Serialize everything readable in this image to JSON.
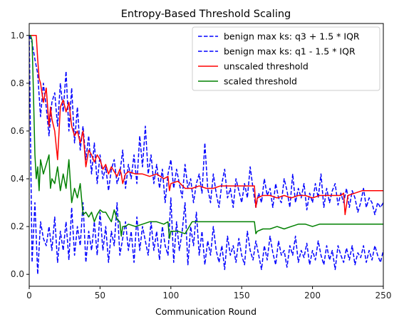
{
  "chart_data": {
    "type": "line",
    "title": "Entropy-Based Threshold Scaling",
    "xlabel": "Communication Round",
    "ylabel": "",
    "xlim": [
      0,
      250
    ],
    "ylim": [
      -0.05,
      1.05
    ],
    "xticks": [
      0,
      50,
      100,
      150,
      200,
      250
    ],
    "yticks": [
      0.0,
      0.2,
      0.4,
      0.6,
      0.8,
      1.0
    ],
    "grid": false,
    "legend_position": "top-right",
    "series": [
      {
        "name": "benign max ks: q3 + 1.5 * IQR",
        "color": "#0000ff",
        "style": "dashed",
        "x": [
          0,
          2,
          4,
          6,
          8,
          10,
          12,
          14,
          16,
          18,
          20,
          22,
          24,
          26,
          28,
          30,
          32,
          34,
          36,
          38,
          40,
          42,
          44,
          46,
          48,
          50,
          52,
          54,
          56,
          58,
          60,
          62,
          64,
          66,
          68,
          70,
          72,
          74,
          76,
          78,
          80,
          82,
          84,
          86,
          88,
          90,
          92,
          94,
          96,
          98,
          100,
          102,
          104,
          106,
          108,
          110,
          112,
          114,
          116,
          118,
          120,
          122,
          124,
          126,
          128,
          130,
          132,
          134,
          136,
          138,
          140,
          142,
          144,
          146,
          148,
          150,
          152,
          154,
          156,
          158,
          160,
          162,
          164,
          166,
          168,
          170,
          172,
          174,
          176,
          178,
          180,
          182,
          184,
          186,
          188,
          190,
          192,
          194,
          196,
          198,
          200,
          202,
          204,
          206,
          208,
          210,
          212,
          214,
          216,
          218,
          220,
          222,
          224,
          226,
          228,
          230,
          232,
          234,
          236,
          238,
          240,
          242,
          244,
          246,
          248,
          250
        ],
        "values": [
          1.0,
          0.97,
          0.9,
          0.84,
          0.66,
          0.8,
          0.7,
          0.58,
          0.72,
          0.76,
          0.62,
          0.8,
          0.68,
          0.85,
          0.6,
          0.78,
          0.55,
          0.7,
          0.52,
          0.62,
          0.48,
          0.58,
          0.42,
          0.55,
          0.38,
          0.5,
          0.4,
          0.45,
          0.35,
          0.44,
          0.48,
          0.38,
          0.42,
          0.52,
          0.36,
          0.46,
          0.4,
          0.5,
          0.38,
          0.58,
          0.45,
          0.62,
          0.42,
          0.5,
          0.38,
          0.46,
          0.36,
          0.44,
          0.3,
          0.42,
          0.48,
          0.36,
          0.44,
          0.38,
          0.32,
          0.46,
          0.36,
          0.4,
          0.3,
          0.38,
          0.42,
          0.34,
          0.55,
          0.36,
          0.3,
          0.42,
          0.34,
          0.28,
          0.38,
          0.44,
          0.32,
          0.36,
          0.28,
          0.4,
          0.35,
          0.3,
          0.38,
          0.32,
          0.45,
          0.36,
          0.28,
          0.34,
          0.3,
          0.4,
          0.33,
          0.36,
          0.28,
          0.38,
          0.32,
          0.3,
          0.4,
          0.35,
          0.28,
          0.42,
          0.3,
          0.36,
          0.32,
          0.38,
          0.27,
          0.34,
          0.3,
          0.38,
          0.32,
          0.42,
          0.28,
          0.36,
          0.3,
          0.35,
          0.38,
          0.29,
          0.34,
          0.3,
          0.36,
          0.28,
          0.35,
          0.32,
          0.26,
          0.3,
          0.36,
          0.28,
          0.32,
          0.3,
          0.25,
          0.3,
          0.28,
          0.3
        ]
      },
      {
        "name": "benign max ks: q1 - 1.5 * IQR",
        "color": "#0000ff",
        "style": "dashed",
        "x": [
          0,
          2,
          4,
          6,
          8,
          10,
          12,
          14,
          16,
          18,
          20,
          22,
          24,
          26,
          28,
          30,
          32,
          34,
          36,
          38,
          40,
          42,
          44,
          46,
          48,
          50,
          52,
          54,
          56,
          58,
          60,
          62,
          64,
          66,
          68,
          70,
          72,
          74,
          76,
          78,
          80,
          82,
          84,
          86,
          88,
          90,
          92,
          94,
          96,
          98,
          100,
          102,
          104,
          106,
          108,
          110,
          112,
          114,
          116,
          118,
          120,
          122,
          124,
          126,
          128,
          130,
          132,
          134,
          136,
          138,
          140,
          142,
          144,
          146,
          148,
          150,
          152,
          154,
          156,
          158,
          160,
          162,
          164,
          166,
          168,
          170,
          172,
          174,
          176,
          178,
          180,
          182,
          184,
          186,
          188,
          190,
          192,
          194,
          196,
          198,
          200,
          202,
          204,
          206,
          208,
          210,
          212,
          214,
          216,
          218,
          220,
          222,
          224,
          226,
          228,
          230,
          232,
          234,
          236,
          238,
          240,
          242,
          244,
          246,
          248,
          250
        ],
        "values": [
          1.0,
          0.05,
          0.3,
          0.0,
          0.22,
          0.15,
          0.12,
          0.2,
          0.1,
          0.24,
          0.05,
          0.18,
          0.1,
          0.22,
          0.06,
          0.28,
          0.08,
          0.2,
          0.12,
          0.3,
          0.05,
          0.18,
          0.1,
          0.22,
          0.08,
          0.26,
          0.1,
          0.2,
          0.05,
          0.18,
          0.12,
          0.3,
          0.08,
          0.15,
          0.22,
          0.1,
          0.18,
          0.05,
          0.24,
          0.1,
          0.2,
          0.14,
          0.08,
          0.22,
          0.1,
          0.18,
          0.06,
          0.2,
          0.12,
          0.08,
          0.32,
          0.05,
          0.22,
          0.1,
          0.18,
          0.3,
          0.04,
          0.2,
          0.12,
          0.26,
          0.08,
          0.18,
          0.04,
          0.14,
          0.08,
          0.2,
          0.1,
          0.05,
          0.12,
          0.02,
          0.16,
          0.08,
          0.12,
          0.05,
          0.15,
          0.08,
          0.04,
          0.18,
          0.1,
          0.06,
          0.14,
          0.08,
          0.02,
          0.12,
          0.06,
          0.16,
          0.09,
          0.04,
          0.14,
          0.08,
          0.1,
          0.03,
          0.12,
          0.08,
          0.16,
          0.05,
          0.1,
          0.07,
          0.13,
          0.04,
          0.1,
          0.06,
          0.14,
          0.08,
          0.04,
          0.12,
          0.06,
          0.1,
          0.02,
          0.12,
          0.08,
          0.05,
          0.11,
          0.06,
          0.12,
          0.04,
          0.09,
          0.07,
          0.12,
          0.05,
          0.1,
          0.06,
          0.12,
          0.08,
          0.05,
          0.1
        ]
      },
      {
        "name": "unscaled threshold",
        "color": "#ff0000",
        "style": "solid",
        "x": [
          0,
          1,
          2,
          3,
          4,
          5,
          6,
          7,
          8,
          10,
          12,
          14,
          15,
          16,
          18,
          20,
          22,
          24,
          26,
          28,
          30,
          32,
          34,
          36,
          38,
          40,
          42,
          44,
          46,
          48,
          50,
          52,
          54,
          56,
          58,
          60,
          62,
          64,
          65,
          66,
          68,
          70,
          75,
          80,
          85,
          90,
          95,
          98,
          99,
          100,
          105,
          110,
          115,
          120,
          125,
          130,
          135,
          140,
          145,
          150,
          155,
          159,
          160,
          161,
          165,
          170,
          175,
          180,
          185,
          190,
          195,
          200,
          205,
          210,
          215,
          220,
          222,
          223,
          225,
          230,
          235,
          240,
          245,
          250
        ],
        "values": [
          1.0,
          1.0,
          1.0,
          1.0,
          1.0,
          1.0,
          0.9,
          0.82,
          0.8,
          0.72,
          0.78,
          0.62,
          0.7,
          0.65,
          0.6,
          0.48,
          0.7,
          0.73,
          0.68,
          0.72,
          0.62,
          0.58,
          0.6,
          0.55,
          0.6,
          0.45,
          0.52,
          0.5,
          0.47,
          0.5,
          0.48,
          0.44,
          0.46,
          0.42,
          0.45,
          0.43,
          0.41,
          0.44,
          0.42,
          0.38,
          0.42,
          0.43,
          0.42,
          0.42,
          0.41,
          0.42,
          0.4,
          0.41,
          0.35,
          0.38,
          0.39,
          0.36,
          0.36,
          0.37,
          0.36,
          0.36,
          0.37,
          0.37,
          0.37,
          0.37,
          0.37,
          0.37,
          0.28,
          0.32,
          0.33,
          0.33,
          0.32,
          0.33,
          0.32,
          0.33,
          0.33,
          0.32,
          0.33,
          0.33,
          0.33,
          0.33,
          0.34,
          0.25,
          0.33,
          0.34,
          0.35,
          0.35,
          0.35,
          0.35
        ]
      },
      {
        "name": "scaled threshold",
        "color": "#008000",
        "style": "solid",
        "x": [
          0,
          1,
          2,
          3,
          4,
          5,
          6,
          7,
          8,
          10,
          12,
          14,
          15,
          16,
          18,
          20,
          22,
          24,
          26,
          28,
          30,
          32,
          34,
          36,
          38,
          40,
          42,
          44,
          46,
          48,
          50,
          52,
          54,
          56,
          58,
          60,
          62,
          64,
          65,
          66,
          68,
          70,
          75,
          80,
          85,
          90,
          95,
          98,
          99,
          100,
          105,
          110,
          115,
          120,
          125,
          130,
          135,
          140,
          145,
          150,
          155,
          159,
          160,
          161,
          165,
          170,
          175,
          180,
          185,
          190,
          195,
          200,
          205,
          210,
          215,
          220,
          222,
          223,
          225,
          230,
          235,
          240,
          245,
          250
        ],
        "values": [
          1.0,
          1.0,
          0.98,
          0.75,
          0.5,
          0.4,
          0.45,
          0.35,
          0.48,
          0.42,
          0.46,
          0.5,
          0.36,
          0.4,
          0.38,
          0.45,
          0.35,
          0.42,
          0.36,
          0.48,
          0.3,
          0.36,
          0.32,
          0.38,
          0.25,
          0.26,
          0.24,
          0.26,
          0.22,
          0.25,
          0.27,
          0.26,
          0.26,
          0.24,
          0.22,
          0.27,
          0.23,
          0.22,
          0.16,
          0.2,
          0.2,
          0.21,
          0.2,
          0.21,
          0.22,
          0.22,
          0.21,
          0.22,
          0.15,
          0.18,
          0.18,
          0.17,
          0.22,
          0.22,
          0.22,
          0.22,
          0.22,
          0.22,
          0.22,
          0.22,
          0.22,
          0.22,
          0.17,
          0.18,
          0.19,
          0.19,
          0.2,
          0.19,
          0.2,
          0.21,
          0.21,
          0.2,
          0.21,
          0.21,
          0.21,
          0.21,
          0.21,
          0.21,
          0.21,
          0.21,
          0.21,
          0.21,
          0.21,
          0.21
        ]
      }
    ]
  }
}
